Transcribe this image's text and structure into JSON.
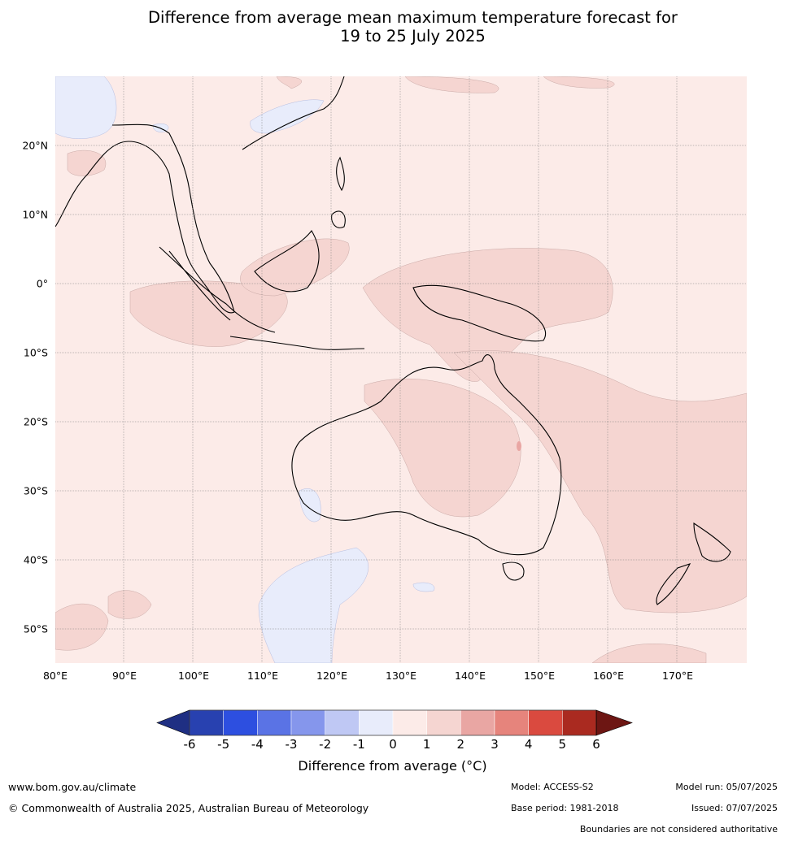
{
  "title": {
    "line1": "Difference from average mean maximum temperature forecast for",
    "line2": "19 to 25 July 2025"
  },
  "map": {
    "lat_labels": [
      "20°N",
      "10°N",
      "0°",
      "10°S",
      "20°S",
      "30°S",
      "40°S",
      "50°S"
    ],
    "lon_labels": [
      "80°E",
      "90°E",
      "100°E",
      "110°E",
      "120°E",
      "130°E",
      "140°E",
      "150°E",
      "160°E",
      "170°E"
    ],
    "background_color": "#fcebe8",
    "anomaly_0_1_color": "#fcebe8",
    "anomaly_1_2_color": "#f5d5d1",
    "anomaly_2_3_color": "#e9a6a3",
    "anomaly_neg1_0_color": "#e8ecfb"
  },
  "colorbar": {
    "ticks": [
      "-6",
      "-5",
      "-4",
      "-3",
      "-2",
      "-1",
      "0",
      "1",
      "2",
      "3",
      "4",
      "5",
      "6"
    ],
    "colors": [
      "#1f2f83",
      "#2841b0",
      "#2d4fe0",
      "#5a73e5",
      "#8596ec",
      "#bfc8f4",
      "#e8ecfb",
      "#fcebe8",
      "#f5d5d1",
      "#e9a6a3",
      "#e6847c",
      "#da4a3f",
      "#aa2a20",
      "#6d1613"
    ],
    "label": "Difference from average (°C)"
  },
  "footer": {
    "website": "www.bom.gov.au/climate",
    "copyright": "© Commonwealth of Australia 2025, Australian Bureau of Meteorology",
    "model": "Model: ACCESS-S2",
    "base_period": "Base period: 1981-2018",
    "model_run": "Model run: 05/07/2025",
    "issued": "Issued: 07/07/2025",
    "disclaimer": "Boundaries are not considered authoritative"
  }
}
